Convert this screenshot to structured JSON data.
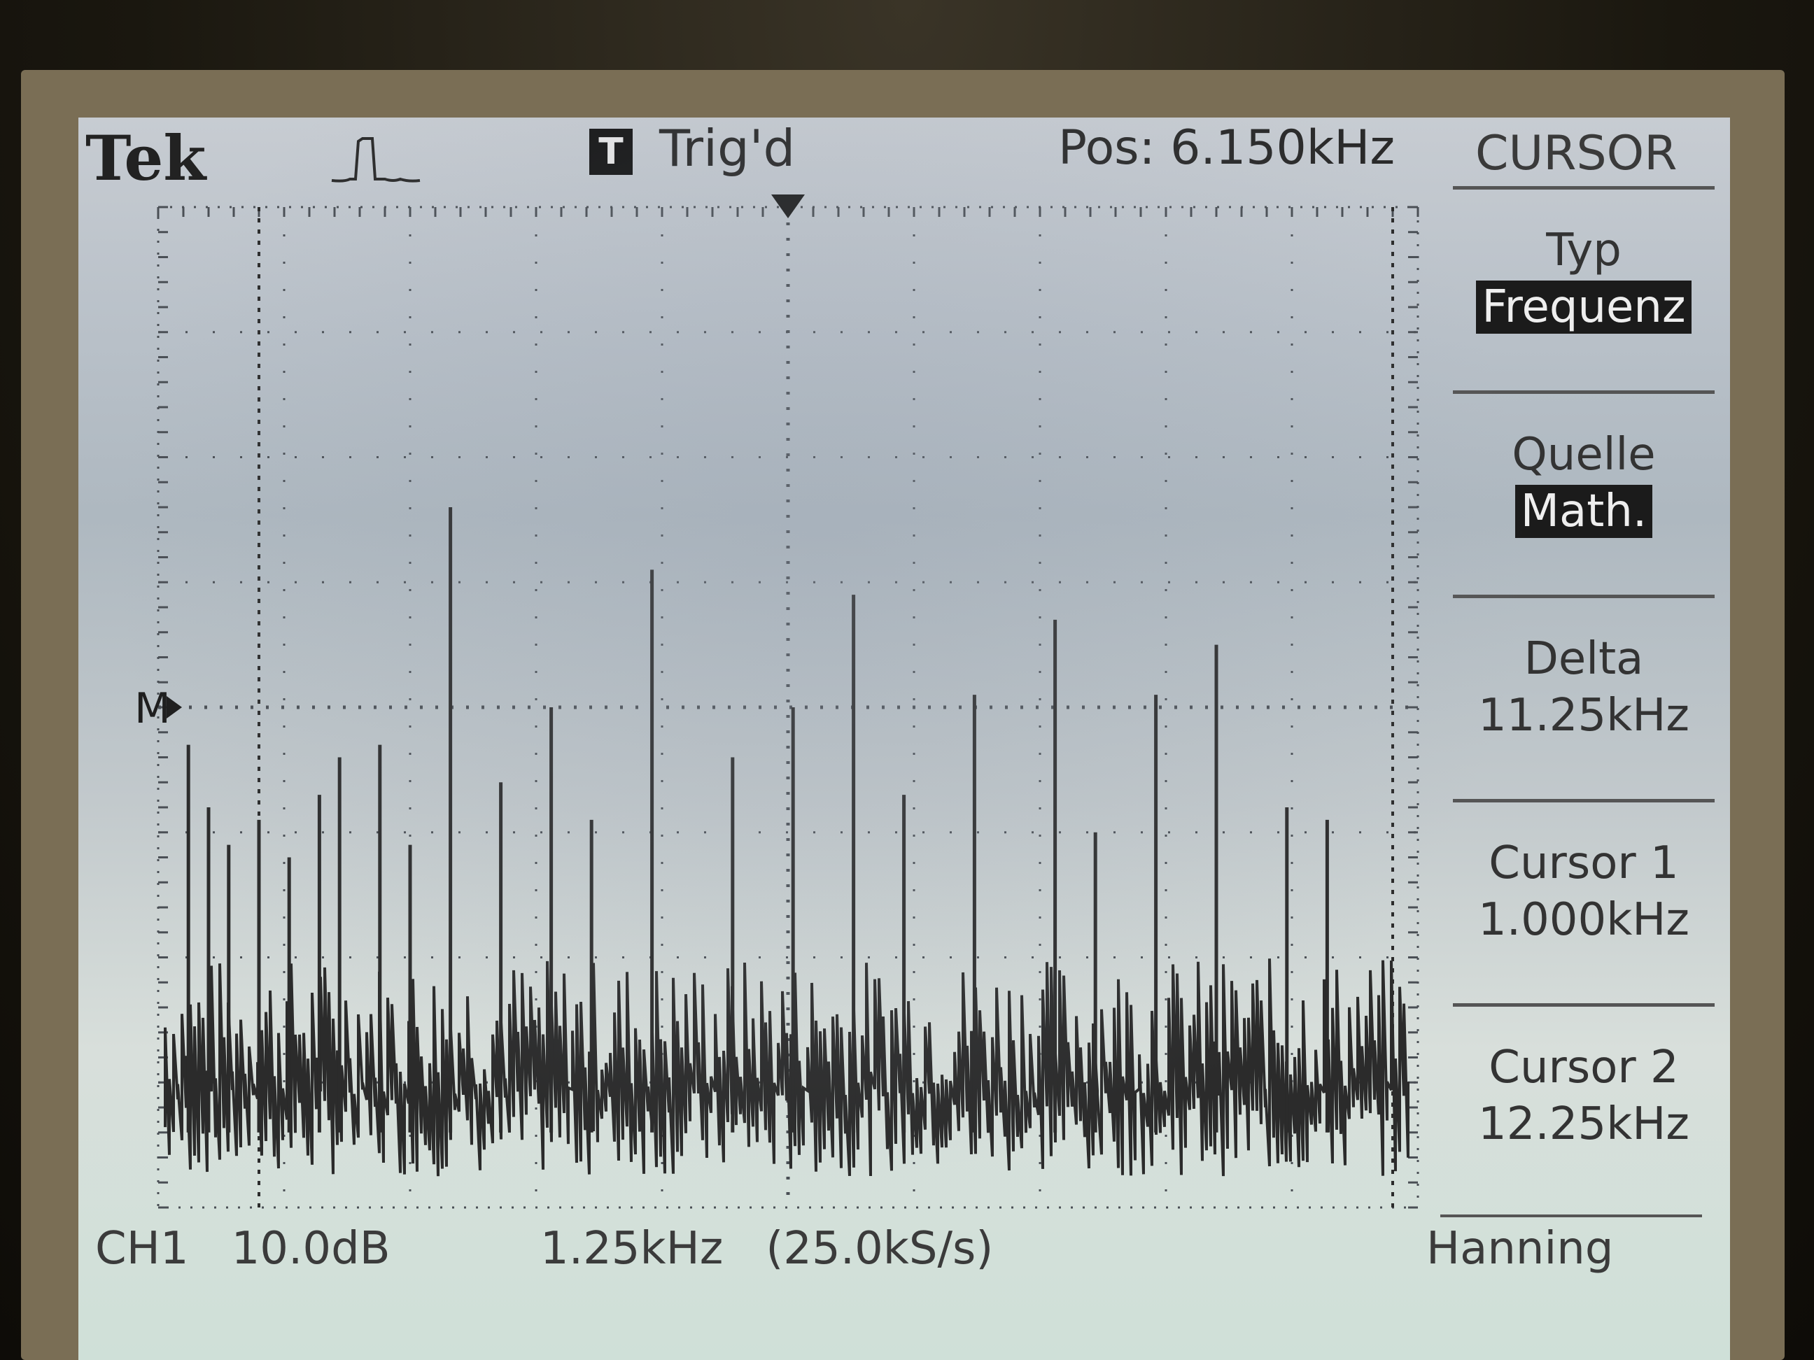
{
  "header": {
    "brand": "Tek",
    "acquire_icon": "acquisition-pulse-icon",
    "trigger_badge": "T",
    "trigger_status": "Trig'd",
    "position": "Pos: 6.150kHz",
    "menu_title": "CURSOR"
  },
  "menu": {
    "items": [
      {
        "label": "Typ",
        "value": "Frequenz",
        "highlighted": true
      },
      {
        "label": "Quelle",
        "value": "Math.",
        "highlighted": true
      },
      {
        "label": "Delta",
        "value": "11.25kHz",
        "highlighted": false
      },
      {
        "label": "Cursor 1",
        "value": "1.000kHz",
        "highlighted": false
      },
      {
        "label": "Cursor 2",
        "value": "12.25kHz",
        "highlighted": false
      }
    ]
  },
  "footer": {
    "channel": "CH1",
    "scale": "10.0dB",
    "freq_div": "1.25kHz",
    "sample_rate": "(25.0kS/s)",
    "window": "Hanning"
  },
  "colors": {
    "screen_bg": "#c7ccd2",
    "trace": "#2b2b2b",
    "grid": "#4a4f55"
  },
  "chart_data": {
    "type": "line",
    "x_axis": {
      "unit": "kHz",
      "per_division": 1.25,
      "divisions": 10,
      "start": 0,
      "end": 12.5
    },
    "y_axis": {
      "unit": "dB",
      "per_division": 10.0,
      "divisions": 8
    },
    "cursors_x": [
      1.0,
      12.25
    ],
    "trigger_marker_x": 6.25,
    "reference_marker": "M",
    "spectral_peaks": [
      {
        "x": 0.3,
        "level": 3.7
      },
      {
        "x": 0.5,
        "level": 3.2
      },
      {
        "x": 0.7,
        "level": 2.9
      },
      {
        "x": 1.0,
        "level": 3.1
      },
      {
        "x": 1.3,
        "level": 2.8
      },
      {
        "x": 1.6,
        "level": 3.3
      },
      {
        "x": 1.8,
        "level": 3.6
      },
      {
        "x": 2.2,
        "level": 3.7
      },
      {
        "x": 2.5,
        "level": 2.9
      },
      {
        "x": 2.9,
        "level": 5.6
      },
      {
        "x": 3.4,
        "level": 3.4
      },
      {
        "x": 3.9,
        "level": 4.0
      },
      {
        "x": 4.3,
        "level": 3.1
      },
      {
        "x": 4.9,
        "level": 5.1
      },
      {
        "x": 5.7,
        "level": 3.6
      },
      {
        "x": 6.3,
        "level": 4.0
      },
      {
        "x": 6.9,
        "level": 4.9
      },
      {
        "x": 7.4,
        "level": 3.3
      },
      {
        "x": 8.1,
        "level": 4.1
      },
      {
        "x": 8.9,
        "level": 4.7
      },
      {
        "x": 9.3,
        "level": 3.0
      },
      {
        "x": 9.9,
        "level": 4.1
      },
      {
        "x": 10.5,
        "level": 4.5
      },
      {
        "x": 11.2,
        "level": 3.2
      },
      {
        "x": 11.6,
        "level": 3.1
      }
    ]
  }
}
